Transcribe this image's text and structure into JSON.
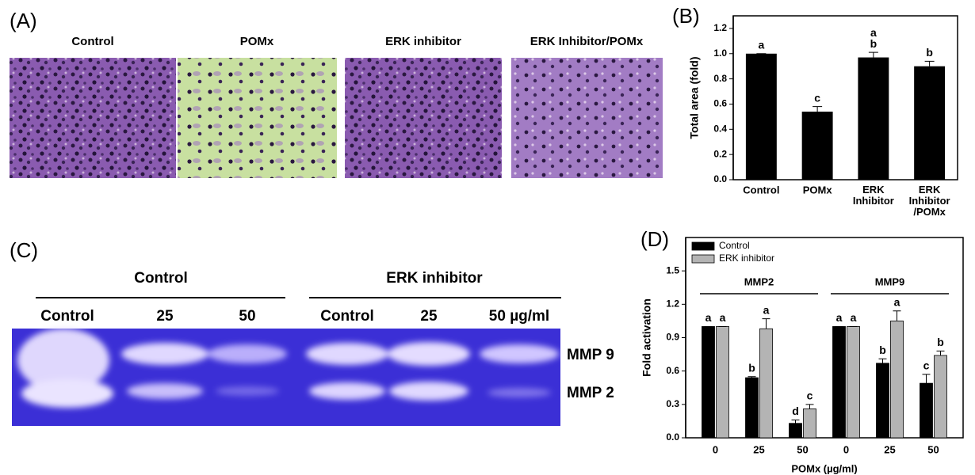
{
  "panel_labels": [
    "(A)",
    "(B)",
    "(C)",
    "(D)"
  ],
  "micrographs": [
    "Control",
    "POMx",
    "ERK inhibitor",
    "ERK Inhibitor/POMx"
  ],
  "gel": {
    "groups": [
      "Control",
      "ERK inhibitor"
    ],
    "lanes": [
      "Control",
      "25",
      "50",
      "Control",
      "25",
      "50 µg/ml"
    ],
    "bands": [
      "MMP 9",
      "MMP 2"
    ]
  },
  "chart_data": [
    {
      "type": "bar",
      "ylabel": "Total area (fold)",
      "categories": [
        "Control",
        "POMx",
        "ERK\nInhibitor",
        "ERK\nInhibitor\n/POMx"
      ],
      "values": [
        1.0,
        0.54,
        0.97,
        0.9
      ],
      "errors": [
        0,
        0.04,
        0.04,
        0.04
      ],
      "annotations": [
        "a",
        "c",
        "a\nb",
        "b"
      ],
      "color": "#000000",
      "ylim": [
        0,
        1.3
      ],
      "yticks": [
        {
          "value": 0,
          "label": "0.0"
        },
        {
          "value": 0.2,
          "label": "0.2"
        },
        {
          "value": 0.4,
          "label": "0.4"
        },
        {
          "value": 0.6,
          "label": "0.6"
        },
        {
          "value": 0.8,
          "label": "0.8"
        },
        {
          "value": 1,
          "label": "1.0"
        },
        {
          "value": 1.2,
          "label": "1.2"
        }
      ]
    },
    {
      "type": "grouped_bar",
      "ylabel": "Fold activation",
      "xlabel": "POMx (µg/ml)",
      "groups": [
        "MMP2",
        "MMP9"
      ],
      "categories": [
        "0",
        "25",
        "50",
        "0",
        "25",
        "50"
      ],
      "series": [
        {
          "name": "Control",
          "color": "#000000",
          "values": [
            1.0,
            0.54,
            0.13,
            1.0,
            0.67,
            0.49
          ],
          "errors": [
            0,
            0.01,
            0.03,
            0,
            0.04,
            0.08
          ],
          "annotations": [
            "a",
            "b",
            "d",
            "a",
            "b",
            "c"
          ]
        },
        {
          "name": "ERK inhibitor",
          "color": "#b4b4b4",
          "values": [
            1.0,
            0.98,
            0.26,
            1.0,
            1.05,
            0.74
          ],
          "errors": [
            0,
            0.09,
            0.04,
            0,
            0.09,
            0.04
          ],
          "annotations": [
            "a",
            "a",
            "c",
            "a",
            "a",
            "b"
          ]
        }
      ],
      "legend": "upper left",
      "ylim": [
        0,
        1.8
      ],
      "yticks": [
        {
          "value": 0,
          "label": "0.0"
        },
        {
          "value": 0.3,
          "label": "0.3"
        },
        {
          "value": 0.6,
          "label": "0.6"
        },
        {
          "value": 0.9,
          "label": "0.9"
        },
        {
          "value": 1.2,
          "label": "1.2"
        },
        {
          "value": 1.5,
          "label": "1.5"
        }
      ]
    }
  ]
}
